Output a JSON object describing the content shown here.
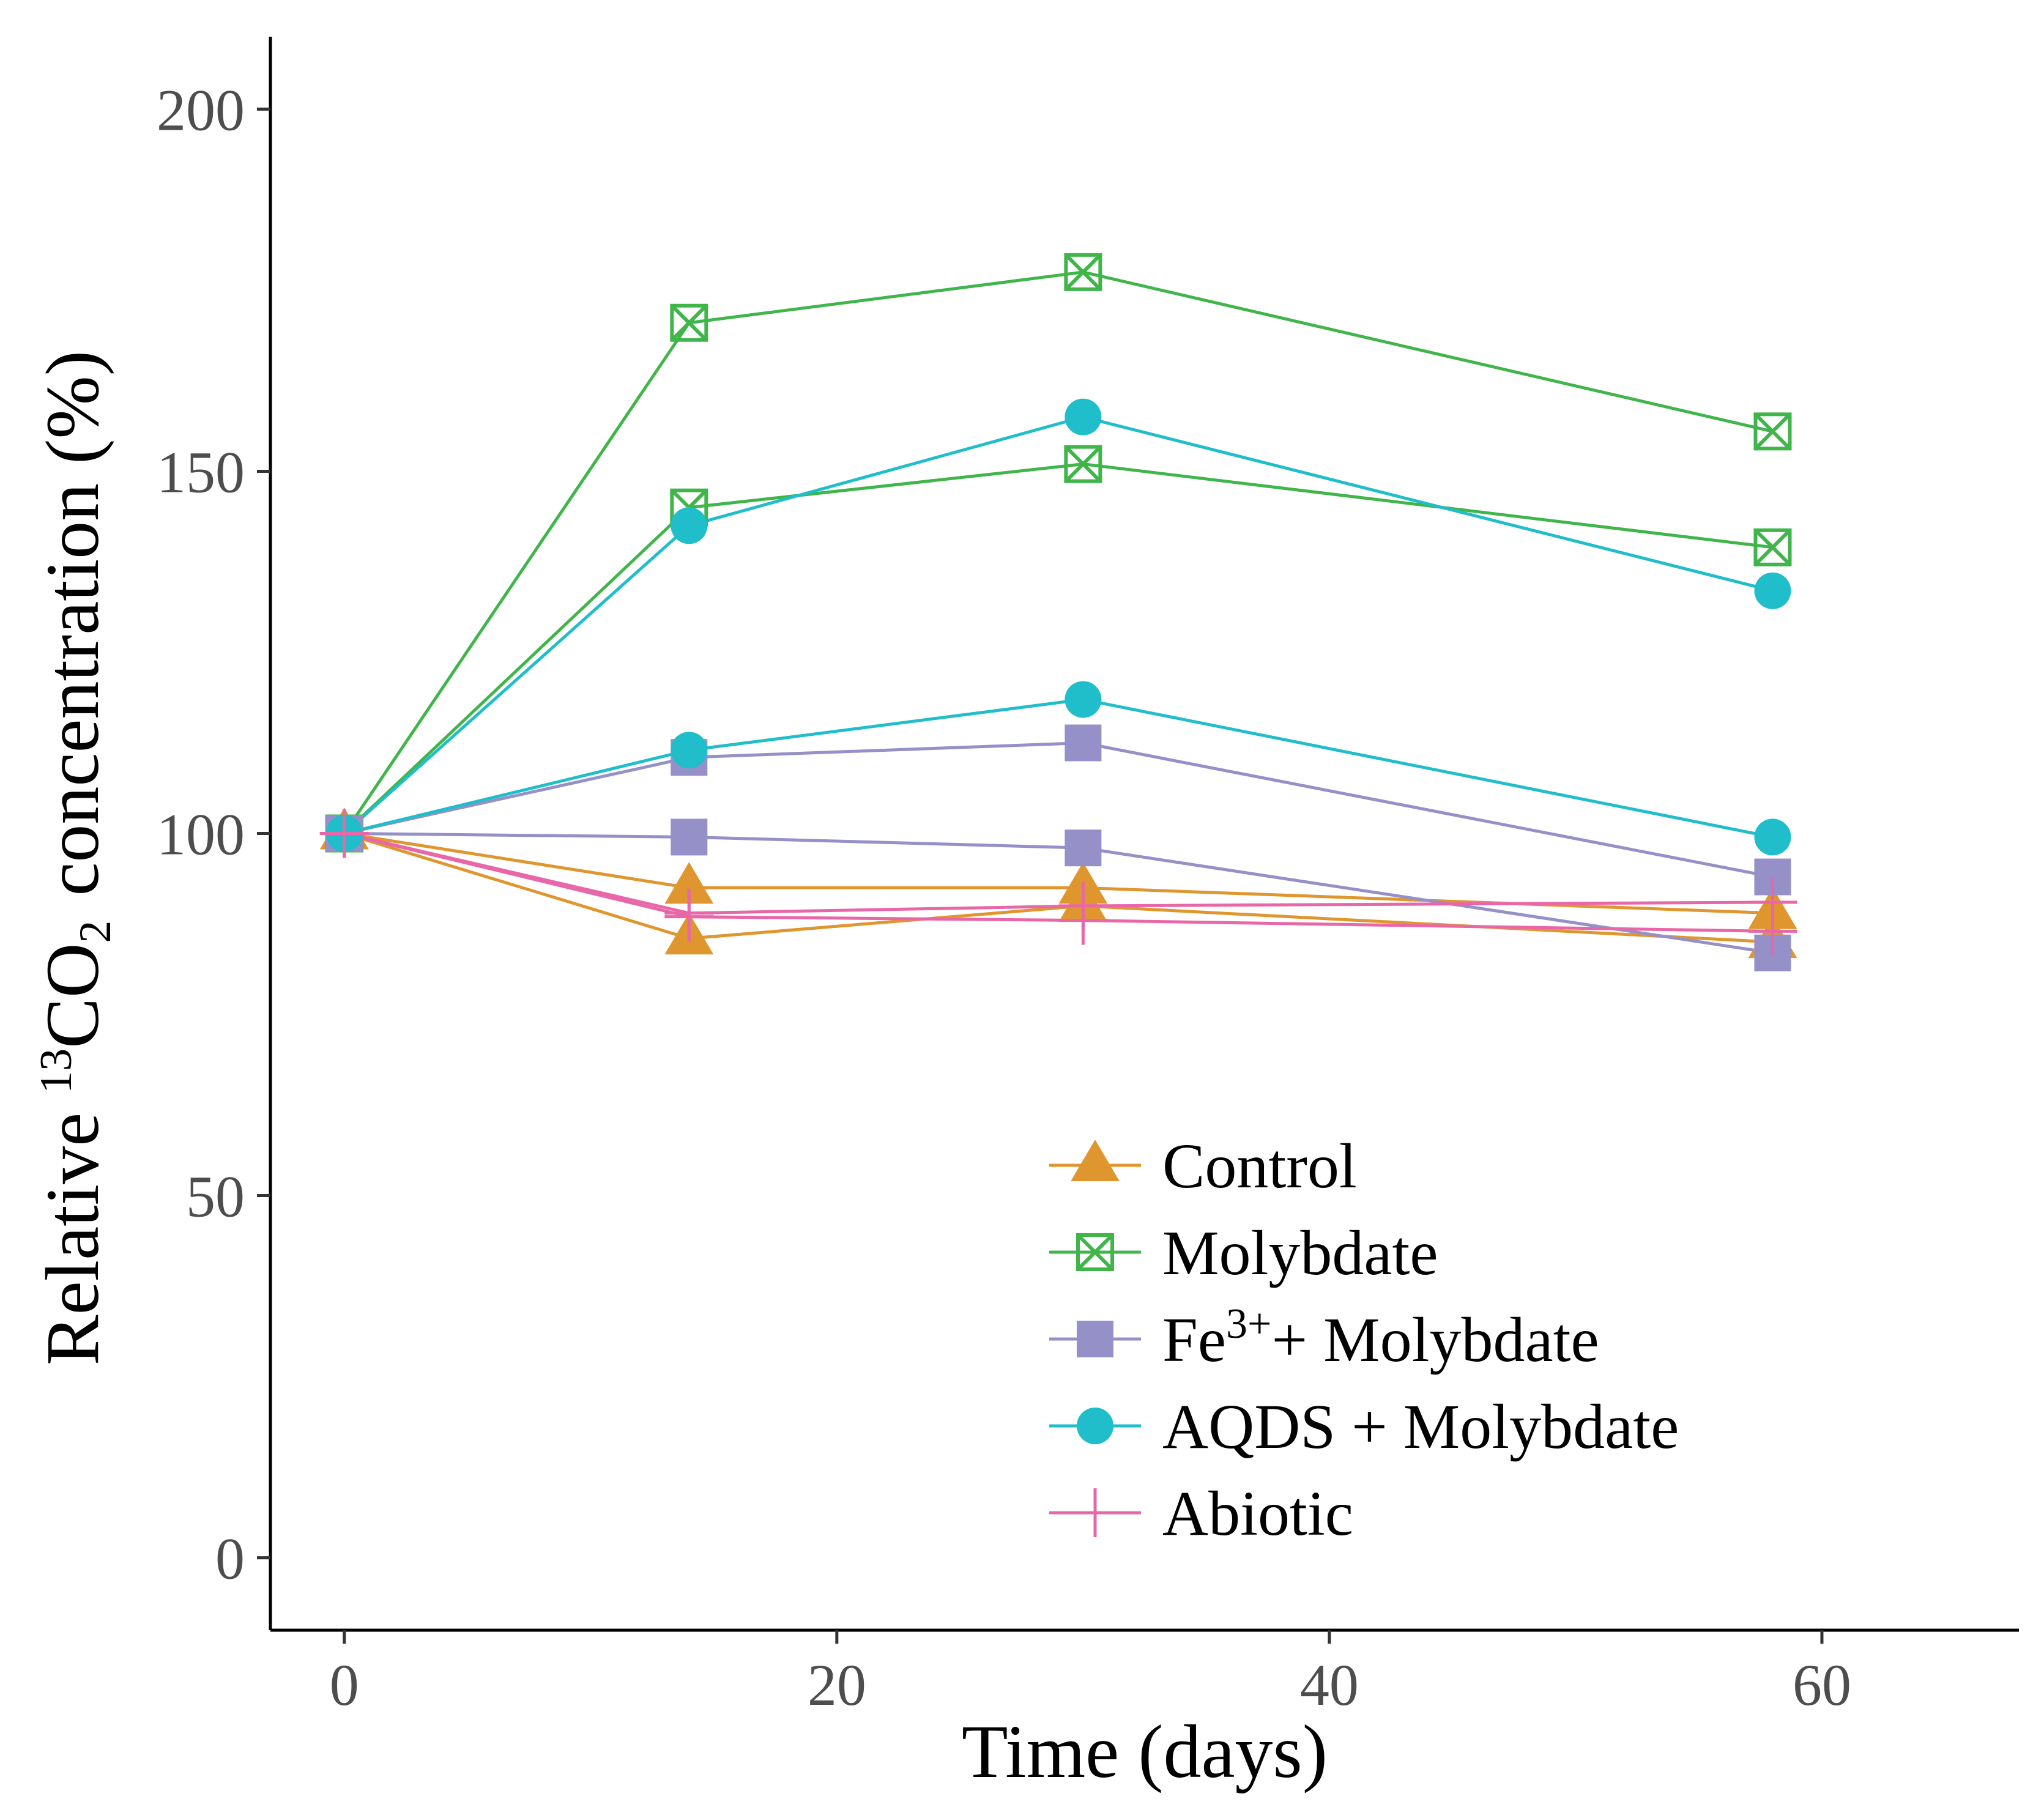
{
  "chart_data": {
    "type": "line",
    "title": "",
    "xlabel": "Time (days)",
    "ylabel": {
      "prefix": "Relative ",
      "isotope": "13",
      "molecule": "CO",
      "subscript": "2",
      "suffix": "concentration (%)"
    },
    "xlim": [
      -3,
      68
    ],
    "ylim": [
      -10,
      210
    ],
    "xticks": [
      0,
      20,
      40,
      60
    ],
    "yticks": [
      0,
      50,
      100,
      150,
      200
    ],
    "grid": false,
    "legend_position": "bottom-right",
    "x": [
      0,
      14,
      30,
      58
    ],
    "groups": [
      {
        "name": "Control",
        "label_parts": {
          "main": "Control"
        },
        "color": "#E0962E",
        "marker": "triangle",
        "replicates": [
          {
            "values": [
              100,
              92.5,
              92.5,
              89
            ]
          },
          {
            "values": [
              100,
              85.5,
              90,
              85
            ]
          }
        ]
      },
      {
        "name": "Molybdate",
        "label_parts": {
          "main": "Molybdate"
        },
        "color": "#3FB54A",
        "marker": "square-x",
        "replicates": [
          {
            "values": [
              100,
              170.5,
              177.5,
              155.5
            ]
          },
          {
            "values": [
              100,
              145,
              151,
              139.5
            ]
          }
        ]
      },
      {
        "name": "Fe3+ + Molybdate",
        "label_parts": {
          "main": "Fe",
          "sup": "3+",
          "rest": "+ Molybdate"
        },
        "color": "#9590C7",
        "marker": "square",
        "replicates": [
          {
            "values": [
              100,
              110.5,
              112.5,
              94
            ]
          },
          {
            "values": [
              100,
              99.5,
              98,
              83.5
            ]
          }
        ]
      },
      {
        "name": "AQDS + Molybdate",
        "label_parts": {
          "main": "AQDS + Molybdate"
        },
        "color": "#1FBECA",
        "marker": "circle",
        "replicates": [
          {
            "values": [
              100,
              142.5,
              157.5,
              133.5
            ]
          },
          {
            "values": [
              100,
              111.5,
              118.5,
              99.5
            ]
          }
        ]
      },
      {
        "name": "Abiotic",
        "label_parts": {
          "main": "Abiotic"
        },
        "color": "#E867A8",
        "marker": "plus",
        "replicates": [
          {
            "values": [
              100,
              89,
              90,
              90.5
            ]
          },
          {
            "values": [
              100,
              88.5,
              88,
              86.5
            ]
          }
        ]
      }
    ]
  }
}
